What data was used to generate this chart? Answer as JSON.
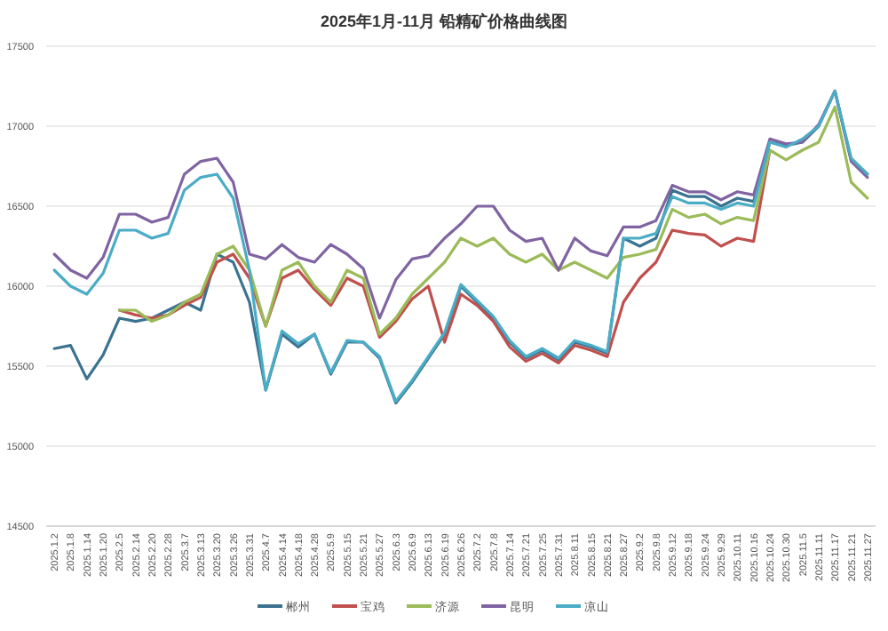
{
  "chart_data": {
    "type": "line",
    "title": "2025年1月-11月 铅精矿价格曲线图",
    "categories": [
      "2025.1.2",
      "2025.1.8",
      "2025.1.14",
      "2025.1.20",
      "2025.2.5",
      "2025.2.14",
      "2025.2.20",
      "2025.2.28",
      "2025.3.7",
      "2025.3.13",
      "2025.3.20",
      "2025.3.26",
      "2025.3.31",
      "2025.4.7",
      "2025.4.14",
      "2025.4.18",
      "2025.4.28",
      "2025.5.9",
      "2025.5.15",
      "2025.5.21",
      "2025.5.27",
      "2025.6.3",
      "2025.6.9",
      "2025.6.13",
      "2025.6.19",
      "2025.6.26",
      "2025.7.2",
      "2025.7.8",
      "2025.7.14",
      "2025.7.21",
      "2025.7.25",
      "2025.7.31",
      "2025.8.11",
      "2025.8.15",
      "2025.8.21",
      "2025.8.27",
      "2025.9.2",
      "2025.9.8",
      "2025.9.12",
      "2025.9.18",
      "2025.9.24",
      "2025.9.29",
      "2025.10.11",
      "2025.10.16",
      "2025.10.24",
      "2025.10.30",
      "2025.11.5",
      "2025.11.11",
      "2025.11.17",
      "2025.11.21",
      "2025.11.27"
    ],
    "series": [
      {
        "name": "郴州",
        "color": "#3b7290",
        "values": [
          15610,
          15630,
          15420,
          15570,
          15800,
          15780,
          15800,
          15850,
          15900,
          15850,
          16200,
          16150,
          15900,
          15350,
          15700,
          15620,
          15700,
          15450,
          15650,
          15650,
          15550,
          15270,
          15400,
          15550,
          15700,
          16000,
          15900,
          15800,
          15650,
          15550,
          15600,
          15540,
          15650,
          15620,
          15580,
          16300,
          16250,
          16300,
          16600,
          16560,
          16560,
          16500,
          16550,
          16530,
          16900,
          16880,
          16900,
          17000,
          17220,
          16790,
          16700
        ]
      },
      {
        "name": "宝鸡",
        "color": "#c0504d",
        "values": [
          null,
          null,
          null,
          null,
          15850,
          15820,
          15800,
          15820,
          15880,
          15930,
          16150,
          16200,
          16050,
          15750,
          16050,
          16100,
          15980,
          15880,
          16050,
          16000,
          15680,
          15780,
          15920,
          16000,
          15650,
          15950,
          15880,
          15780,
          15620,
          15530,
          15580,
          15520,
          15630,
          15600,
          15560,
          15900,
          16050,
          16150,
          16350,
          16330,
          16320,
          16250,
          16300,
          16280,
          16850,
          null,
          null,
          null,
          null,
          null,
          null
        ]
      },
      {
        "name": "济源",
        "color": "#9bbb59",
        "values": [
          null,
          null,
          null,
          null,
          15850,
          15850,
          15780,
          15820,
          15900,
          15950,
          16200,
          16250,
          16100,
          15750,
          16100,
          16150,
          16000,
          15900,
          16100,
          16050,
          15700,
          15800,
          15950,
          16050,
          16150,
          16300,
          16250,
          16300,
          16200,
          16150,
          16200,
          16100,
          16150,
          16100,
          16050,
          16180,
          16200,
          16230,
          16480,
          16430,
          16450,
          16390,
          16430,
          16410,
          16850,
          16790,
          16850,
          16900,
          17120,
          16650,
          16550
        ]
      },
      {
        "name": "昆明",
        "color": "#8064a2",
        "values": [
          16200,
          16100,
          16050,
          16180,
          16450,
          16450,
          16400,
          16430,
          16700,
          16780,
          16800,
          16650,
          16200,
          16170,
          16260,
          16180,
          16150,
          16260,
          16200,
          16110,
          15800,
          16040,
          16170,
          16190,
          16300,
          16390,
          16500,
          16500,
          16350,
          16280,
          16300,
          16100,
          16300,
          16220,
          16190,
          16370,
          16370,
          16410,
          16630,
          16590,
          16590,
          16540,
          16590,
          16570,
          16920,
          16890,
          16900,
          17010,
          17220,
          16780,
          16680
        ]
      },
      {
        "name": "凉山",
        "color": "#4bacc6",
        "values": [
          16100,
          16000,
          15950,
          16080,
          16350,
          16350,
          16300,
          16330,
          16600,
          16680,
          16700,
          16550,
          16100,
          15350,
          15720,
          15640,
          15700,
          15460,
          15660,
          15650,
          15560,
          15280,
          15410,
          15560,
          15710,
          16010,
          15910,
          15810,
          15660,
          15560,
          15610,
          15550,
          15660,
          15630,
          15590,
          16300,
          16300,
          16330,
          16560,
          16520,
          16520,
          16480,
          16520,
          16500,
          16900,
          16870,
          16920,
          17000,
          17220,
          16800,
          16700
        ]
      }
    ],
    "ylim": [
      14500,
      17500
    ],
    "yticks": [
      14500,
      15000,
      15500,
      16000,
      16500,
      17000,
      17500
    ],
    "grid": "y",
    "legend": "bottom"
  }
}
